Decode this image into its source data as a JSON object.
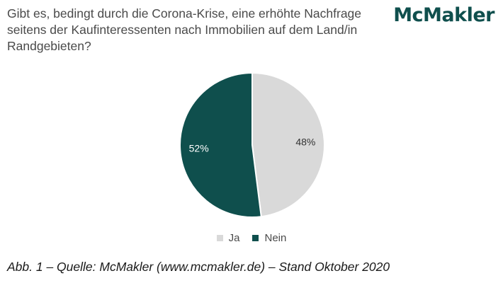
{
  "brand": "McMakler",
  "chart_data": {
    "type": "pie",
    "title": "Gibt es, bedingt durch die Corona-Krise, eine erhöhte Nachfrage seitens der Kaufinteressenten nach Immobilien auf dem Land/in Randgebieten?",
    "slices": [
      {
        "name": "Ja",
        "value": 48,
        "label": "48%",
        "color": "#d9d9d9"
      },
      {
        "name": "Nein",
        "value": 52,
        "label": "52%",
        "color": "#0f4f4d"
      }
    ],
    "legend_position": "bottom"
  },
  "caption": "Abb. 1 – Quelle: McMakler (www.mcmakler.de) – Stand Oktober 2020"
}
